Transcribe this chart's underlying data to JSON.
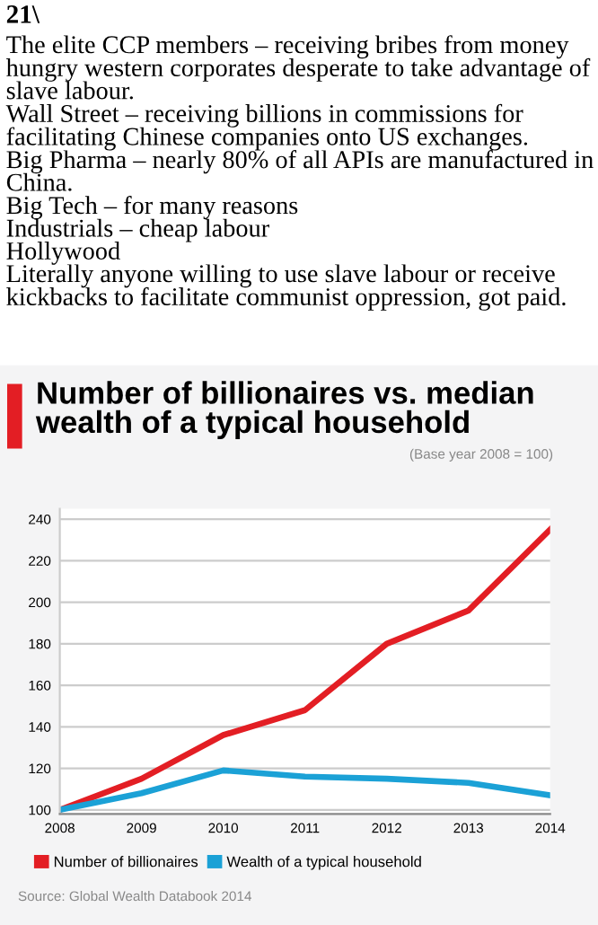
{
  "chart_data": {
    "type": "line",
    "title": "Number of billionaires vs. median wealth of a typical household",
    "subtitle": "(Base year 2008 = 100)",
    "x": [
      2008,
      2009,
      2010,
      2011,
      2012,
      2013,
      2014
    ],
    "series": [
      {
        "name": "Number of billionaires",
        "color": "#e31e24",
        "values": [
          100,
          115,
          136,
          148,
          180,
          196,
          235
        ]
      },
      {
        "name": "Wealth of a typical household",
        "color": "#1ba1d6",
        "values": [
          100,
          108,
          119,
          116,
          115,
          113,
          107
        ]
      }
    ],
    "xlim": [
      2008,
      2014
    ],
    "xticks": [
      2008,
      2009,
      2010,
      2011,
      2012,
      2013,
      2014
    ],
    "ylim": [
      98,
      245
    ],
    "yticks": [
      100,
      120,
      140,
      160,
      180,
      200,
      220,
      240
    ],
    "grid": "y",
    "legend": "bottom",
    "marker": "none",
    "line_style": "solid",
    "annotations": [
      "21\\",
      "The elite CCP members – receiving bribes from money hungry western corporates desperate to take advantage of slave labour.",
      "Wall Street – receiving billions in commissions for facilitating Chinese companies onto US exchanges.",
      "Big Pharma – nearly 80% of all APIs are manufactured in China.",
      "Big Tech – for many reasons",
      "Industrials – cheap labour",
      "Hollywood",
      "Literally anyone willing to use slave labour or receive kickbacks to facilitate communist oppression, got paid.",
      "Source: Global Wealth Databook 2014"
    ]
  }
}
